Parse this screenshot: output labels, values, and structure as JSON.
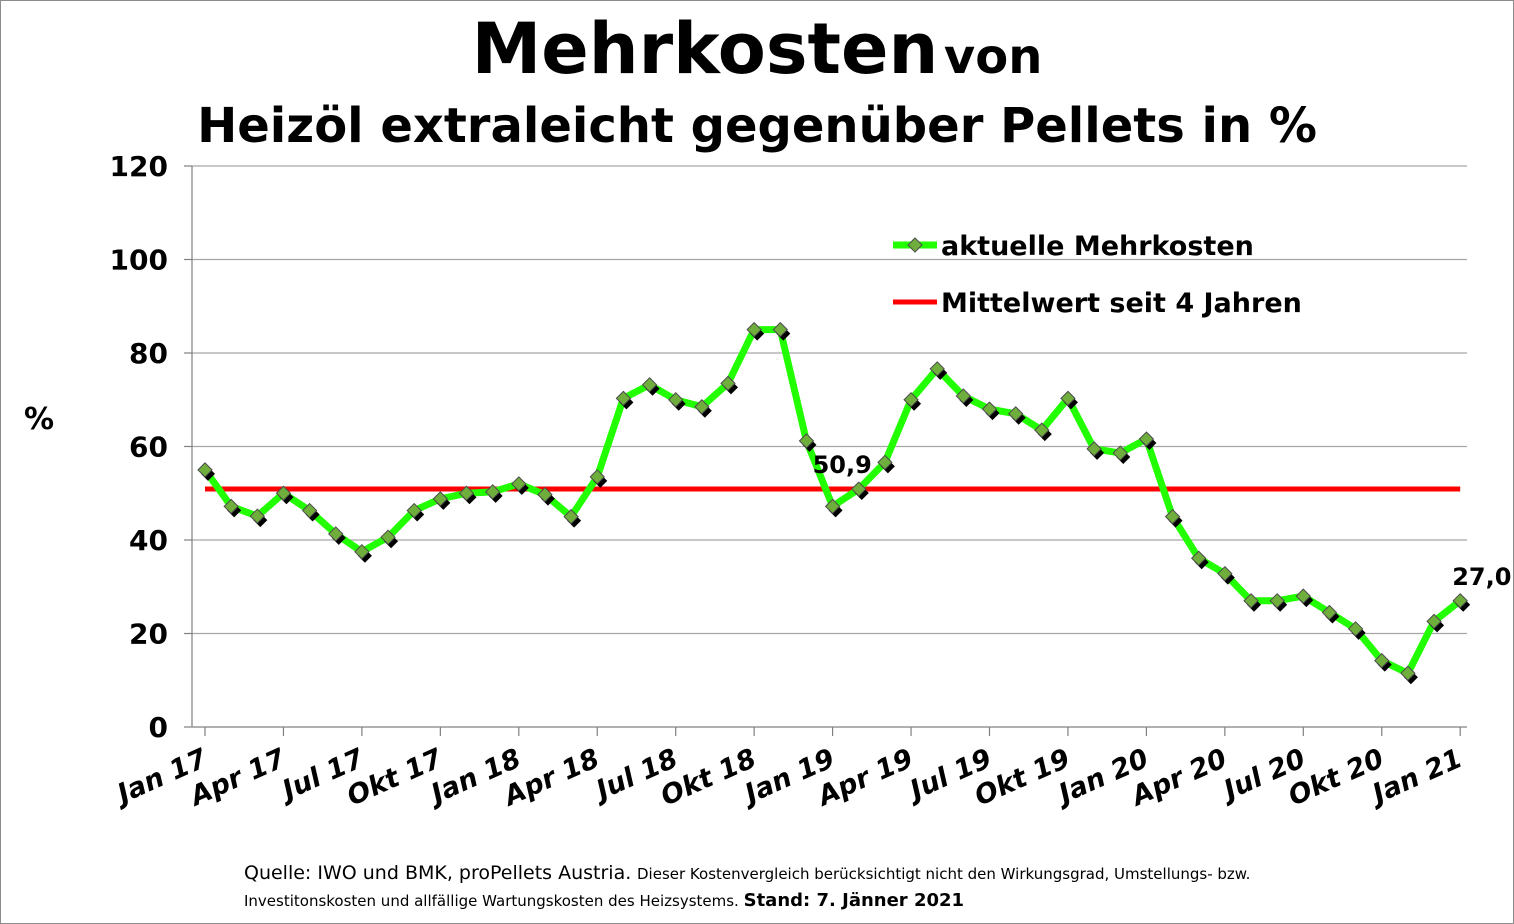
{
  "title": {
    "main": "Mehrkosten",
    "main_rest": "von",
    "line2": "Heizöl extraleicht gegenüber Pellets in %"
  },
  "footer": {
    "source": "Quelle: IWO und BMK, proPellets Austria.",
    "note_part1": "Dieser Kostenvergleich berücksichtigt nicht den Wirkungsgrad, Umstellungs- bzw.",
    "note_part2": "Investitonskosten und allfällige Wartungskosten des Heizsystems.",
    "stand": "Stand: 7. Jänner 2021"
  },
  "chart_data": {
    "type": "line",
    "ylabel": "%",
    "ylim": [
      0,
      120
    ],
    "yticks": [
      0,
      20,
      40,
      60,
      80,
      100,
      120
    ],
    "grid": "horizontal",
    "legend_position": "top-right",
    "colors": {
      "series": "#22ff00",
      "marker": "#6fae3c",
      "mean": "#ff0000",
      "grid": "#a6a6a6"
    },
    "x_tick_labels": [
      "Jan 17",
      "Apr 17",
      "Jul 17",
      "Okt 17",
      "Jan 18",
      "Apr 18",
      "Jul 18",
      "Okt 18",
      "Jan 19",
      "Apr 19",
      "Jul 19",
      "Okt 19",
      "Jan 20",
      "Apr 20",
      "Jul 20",
      "Okt 20",
      "Jan 21"
    ],
    "series": [
      {
        "name": "aktuelle Mehrkosten",
        "values": [
          55.0,
          47.2,
          45.1,
          50.0,
          46.3,
          41.3,
          37.5,
          40.6,
          46.3,
          48.8,
          50.0,
          50.3,
          52.0,
          49.7,
          45.0,
          53.5,
          70.3,
          73.2,
          70.0,
          68.5,
          73.5,
          85.0,
          85.0,
          61.2,
          47.2,
          50.9,
          56.6,
          70.0,
          76.6,
          70.8,
          68.0,
          67.0,
          63.5,
          70.3,
          59.5,
          58.6,
          61.6,
          45.0,
          36.1,
          32.8,
          27.0,
          27.0,
          28.0,
          24.5,
          21.0,
          14.2,
          11.5,
          22.6,
          27.0
        ]
      },
      {
        "name": "Mittelwert seit 4 Jahren",
        "value": 50.9
      }
    ],
    "annotations": [
      {
        "text": "50,9",
        "x_index": 24,
        "y": 50.9
      },
      {
        "text": "27,0",
        "x_index": 48,
        "y": 27.0
      }
    ]
  }
}
